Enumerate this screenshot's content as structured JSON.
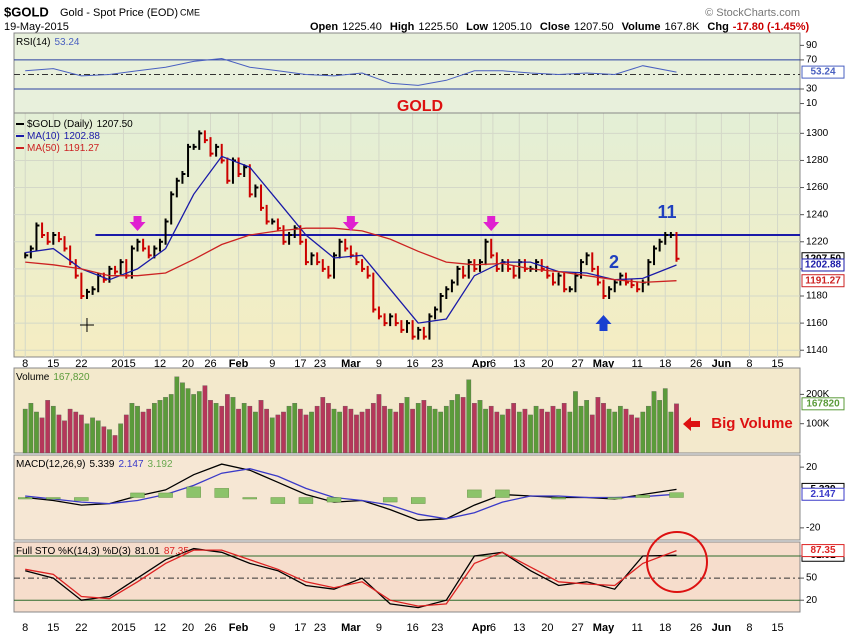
{
  "header": {
    "symbol": "$GOLD",
    "name": "Gold - Spot Price (EOD)",
    "exchange": "CME",
    "date": "19-May-2015",
    "copyright": "© StockCharts.com",
    "stats": [
      {
        "label": "Open",
        "value": "1225.40"
      },
      {
        "label": "High",
        "value": "1225.50"
      },
      {
        "label": "Low",
        "value": "1205.10"
      },
      {
        "label": "Close",
        "value": "1207.50"
      },
      {
        "label": "Volume",
        "value": "167.8K"
      },
      {
        "label": "Chg",
        "value": "-17.80 (-1.45%)"
      }
    ]
  },
  "chart_data": [
    {
      "type": "price",
      "grid": true,
      "xlim": [
        -2,
        138
      ],
      "xticks": [
        {
          "value": 0,
          "label": "8"
        },
        {
          "value": 5,
          "label": "15"
        },
        {
          "value": 10,
          "label": "22"
        },
        {
          "value": 17.5,
          "label": "2015"
        },
        {
          "value": 24,
          "label": "12"
        },
        {
          "value": 29,
          "label": "20"
        },
        {
          "value": 33,
          "label": "26"
        },
        {
          "value": 38,
          "label": "Feb"
        },
        {
          "value": 44,
          "label": "9"
        },
        {
          "value": 49,
          "label": "17"
        },
        {
          "value": 52.5,
          "label": "23"
        },
        {
          "value": 58,
          "label": "Mar"
        },
        {
          "value": 63,
          "label": "9"
        },
        {
          "value": 69,
          "label": "16"
        },
        {
          "value": 73.4,
          "label": "23"
        },
        {
          "value": 81.2,
          "label": "Apr"
        },
        {
          "value": 83.3,
          "label": "6"
        },
        {
          "value": 88,
          "label": "13"
        },
        {
          "value": 93,
          "label": "20"
        },
        {
          "value": 98.4,
          "label": "27"
        },
        {
          "value": 103,
          "label": "May"
        },
        {
          "value": 109,
          "label": "11"
        },
        {
          "value": 114,
          "label": "18"
        },
        {
          "value": 119.5,
          "label": "26"
        },
        {
          "value": 124,
          "label": "Jun"
        },
        {
          "value": 129,
          "label": "8"
        },
        {
          "value": 134,
          "label": "15"
        }
      ],
      "ylim": [
        1135,
        1315
      ],
      "yticks": [
        1140,
        1160,
        1180,
        1200,
        1220,
        1240,
        1260,
        1280,
        1300
      ],
      "hline": 1225,
      "series": [
        {
          "name": "$GOLD (Daily)",
          "label": "1207.50",
          "box": true,
          "kind": "bars",
          "color": "#000000",
          "down_color": "#cc0000",
          "values": [
            1210,
            1215,
            1232,
            1225,
            1220,
            1225,
            1222,
            1215,
            1205,
            1195,
            1180,
            1183,
            1185,
            1195,
            1192,
            1200,
            1198,
            1205,
            1195,
            1215,
            1220,
            1215,
            1210,
            1215,
            1220,
            1235,
            1255,
            1265,
            1270,
            1290,
            1290,
            1300,
            1295,
            1285,
            1290,
            1280,
            1265,
            1280,
            1270,
            1275,
            1255,
            1260,
            1245,
            1235,
            1235,
            1230,
            1220,
            1225,
            1230,
            1220,
            1205,
            1210,
            1205,
            1200,
            1195,
            1210,
            1220,
            1215,
            1210,
            1205,
            1200,
            1195,
            1170,
            1165,
            1160,
            1165,
            1160,
            1155,
            1160,
            1150,
            1155,
            1150,
            1165,
            1170,
            1180,
            1185,
            1190,
            1200,
            1195,
            1205,
            1200,
            1205,
            1220,
            1210,
            1200,
            1205,
            1200,
            1195,
            1205,
            1200,
            1200,
            1205,
            1200,
            1195,
            1190,
            1195,
            1185,
            1185,
            1195,
            1205,
            1210,
            1200,
            1190,
            1180,
            1185,
            1190,
            1195,
            1190,
            1188,
            1185,
            1190,
            1205,
            1215,
            1220,
            1225,
            1225,
            1207.5
          ]
        },
        {
          "name": "MA(10)",
          "label": "1202.88",
          "box": true,
          "kind": "line",
          "color": "#1a1aa8",
          "x": [
            0,
            5,
            10,
            15,
            20,
            25,
            30,
            35,
            40,
            45,
            50,
            55,
            60,
            65,
            70,
            75,
            80,
            85,
            90,
            95,
            100,
            105,
            110,
            116
          ],
          "values": [
            1212,
            1215,
            1200,
            1192,
            1200,
            1215,
            1255,
            1283,
            1275,
            1250,
            1225,
            1208,
            1210,
            1185,
            1160,
            1163,
            1195,
            1205,
            1205,
            1198,
            1197,
            1192,
            1193,
            1202.88
          ]
        },
        {
          "name": "MA(50)",
          "label": "1191.27",
          "box": true,
          "kind": "line",
          "color": "#cc2222",
          "x": [
            0,
            5,
            10,
            15,
            20,
            25,
            30,
            35,
            40,
            45,
            50,
            55,
            60,
            65,
            70,
            75,
            80,
            85,
            90,
            95,
            100,
            105,
            110,
            116
          ],
          "values": [
            1205,
            1203,
            1200,
            1195,
            1195,
            1197,
            1207,
            1218,
            1225,
            1228,
            1230,
            1230,
            1228,
            1222,
            1213,
            1205,
            1203,
            1204,
            1200,
            1198,
            1195,
            1192,
            1190,
            1191.27
          ]
        }
      ],
      "annotations": [
        {
          "text": "11",
          "color": "#1f3fbf"
        },
        {
          "text": "2",
          "color": "#1f3fbf"
        }
      ]
    },
    {
      "type": "line",
      "title": "RSI(14)",
      "ylim": [
        -3,
        107
      ],
      "yticks": [
        10,
        30,
        70,
        90
      ],
      "ref_lines": [
        30,
        70
      ],
      "ref_color": "#2a3fa0",
      "midline": 50,
      "series": [
        {
          "label": "53.24",
          "box": true,
          "kind": "line",
          "color": "#4a60c0",
          "x": [
            0,
            5,
            10,
            15,
            20,
            25,
            30,
            35,
            40,
            45,
            50,
            55,
            60,
            65,
            70,
            75,
            80,
            85,
            90,
            95,
            100,
            105,
            110,
            116
          ],
          "values": [
            55,
            58,
            48,
            50,
            55,
            60,
            68,
            72,
            60,
            55,
            50,
            48,
            52,
            38,
            35,
            42,
            55,
            55,
            52,
            50,
            52,
            50,
            62,
            53.24
          ]
        }
      ],
      "annotations": [
        {
          "text": "GOLD",
          "color": "#dd1111"
        }
      ]
    },
    {
      "type": "bar",
      "title": "Volume",
      "ylim": [
        0,
        290000
      ],
      "yticks": [
        {
          "value": 100000,
          "label": "100K"
        },
        {
          "value": 200000,
          "label": "200K"
        }
      ],
      "series": [
        {
          "label": "167,820",
          "box": true,
          "box_label": "167820",
          "kind": "volume",
          "color": "#5b9b3a",
          "down_color": "#b5375a",
          "values": [
            150000,
            170000,
            140000,
            120000,
            180000,
            160000,
            130000,
            110000,
            150000,
            140000,
            130000,
            100000,
            120000,
            110000,
            90000,
            80000,
            60000,
            100000,
            130000,
            170000,
            160000,
            140000,
            150000,
            170000,
            180000,
            190000,
            200000,
            260000,
            240000,
            220000,
            200000,
            210000,
            230000,
            180000,
            170000,
            160000,
            200000,
            190000,
            150000,
            170000,
            160000,
            140000,
            180000,
            150000,
            120000,
            130000,
            140000,
            160000,
            170000,
            150000,
            130000,
            140000,
            160000,
            190000,
            170000,
            150000,
            140000,
            160000,
            150000,
            130000,
            140000,
            150000,
            170000,
            200000,
            160000,
            150000,
            140000,
            170000,
            190000,
            150000,
            170000,
            180000,
            160000,
            150000,
            140000,
            160000,
            180000,
            200000,
            190000,
            250000,
            170000,
            180000,
            150000,
            160000,
            140000,
            130000,
            150000,
            170000,
            140000,
            150000,
            130000,
            160000,
            150000,
            140000,
            160000,
            150000,
            170000,
            140000,
            210000,
            160000,
            180000,
            130000,
            190000,
            170000,
            150000,
            140000,
            160000,
            150000,
            130000,
            120000,
            140000,
            160000,
            210000,
            180000,
            220000,
            140000,
            167820
          ]
        }
      ],
      "annotations": [
        {
          "text": "Big Volume",
          "color": "#dd1111"
        }
      ]
    },
    {
      "type": "macd",
      "title": "MACD(12,26,9)",
      "ylim": [
        -28,
        28
      ],
      "yticks": [
        -20,
        20
      ],
      "series": [
        {
          "label": "5.339",
          "box": true,
          "kind": "line",
          "color": "#000000",
          "x": [
            0,
            5,
            10,
            15,
            20,
            25,
            30,
            35,
            40,
            45,
            50,
            55,
            60,
            65,
            70,
            75,
            80,
            85,
            90,
            95,
            100,
            105,
            110,
            116
          ],
          "values": [
            0,
            -2,
            -5,
            -4,
            1,
            5,
            15,
            22,
            18,
            10,
            2,
            -3,
            -2,
            -8,
            -15,
            -14,
            -5,
            2,
            1,
            0,
            0,
            -1,
            2,
            5.339
          ]
        },
        {
          "label": "2.147",
          "box": true,
          "kind": "line",
          "color": "#3a3ac8",
          "x": [
            0,
            5,
            10,
            15,
            20,
            25,
            30,
            35,
            40,
            45,
            50,
            55,
            60,
            65,
            70,
            75,
            80,
            85,
            90,
            95,
            100,
            105,
            110,
            116
          ],
          "values": [
            1,
            -1,
            -3,
            -4,
            -2,
            2,
            8,
            16,
            19,
            14,
            6,
            0,
            -2,
            -5,
            -11,
            -14,
            -10,
            -3,
            1,
            1,
            0,
            0,
            0.5,
            2.147
          ]
        },
        {
          "label": "3.192",
          "box": false,
          "kind": "histogram",
          "color": "#8cc36a",
          "x": [
            0,
            5,
            10,
            15,
            20,
            25,
            30,
            35,
            40,
            45,
            50,
            55,
            60,
            65,
            70,
            75,
            80,
            85,
            90,
            95,
            100,
            105,
            110,
            116
          ],
          "values": [
            -1,
            -1,
            -2,
            0,
            3,
            3,
            7,
            6,
            -1,
            -4,
            -4,
            -3,
            0,
            -3,
            -4,
            0,
            5,
            5,
            0,
            -1,
            0,
            -1,
            1.5,
            3.192
          ]
        }
      ]
    },
    {
      "type": "line",
      "title": "Full STO %K(14,3) %D(3)",
      "ylim": [
        4,
        99
      ],
      "yticks": [
        20,
        50,
        80
      ],
      "ref_lines": [
        20,
        80
      ],
      "ref_color": "#2d6b2d",
      "midline": 50,
      "series": [
        {
          "label": "81.01",
          "box": true,
          "kind": "line",
          "color": "#000000",
          "x": [
            0,
            5,
            10,
            15,
            20,
            25,
            30,
            35,
            40,
            45,
            50,
            55,
            60,
            65,
            70,
            75,
            80,
            85,
            90,
            95,
            100,
            105,
            110,
            116
          ],
          "values": [
            60,
            50,
            20,
            25,
            50,
            75,
            90,
            85,
            70,
            60,
            40,
            35,
            50,
            15,
            10,
            20,
            80,
            85,
            60,
            40,
            45,
            35,
            80,
            81.01
          ]
        },
        {
          "label": "87.35",
          "box": true,
          "kind": "line",
          "color": "#dd2222",
          "x": [
            0,
            5,
            10,
            15,
            20,
            25,
            30,
            35,
            40,
            45,
            50,
            55,
            60,
            65,
            70,
            75,
            80,
            85,
            90,
            95,
            100,
            105,
            110,
            116
          ],
          "values": [
            62,
            55,
            25,
            22,
            45,
            70,
            88,
            88,
            75,
            62,
            45,
            37,
            45,
            20,
            12,
            15,
            70,
            85,
            65,
            45,
            42,
            40,
            70,
            87.35
          ]
        }
      ]
    }
  ]
}
